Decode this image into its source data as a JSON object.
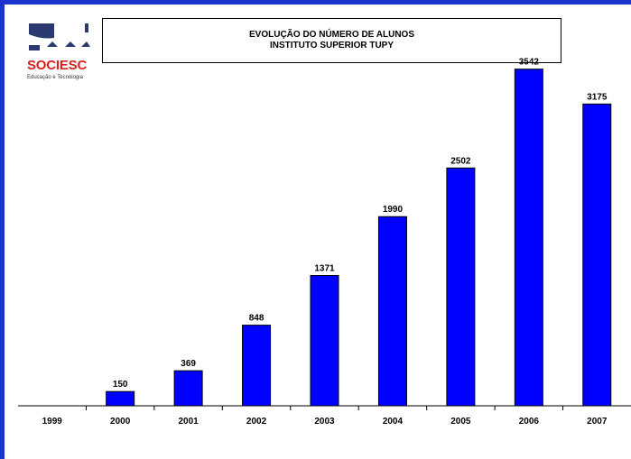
{
  "logo": {
    "brand": "SOCIESC",
    "tagline": "Educação e Tecnologia"
  },
  "header": {
    "title_line1": "EVOLUÇÃO DO NÚMERO DE ALUNOS",
    "title_line2": "INSTITUTO SUPERIOR TUPY"
  },
  "colors": {
    "bar": "#0000ff",
    "frame": "#1a33cc",
    "logo_red": "#d9201f",
    "logo_navy": "#2a3a6e"
  },
  "chart_data": {
    "type": "bar",
    "title": "EVOLUÇÃO DO NÚMERO DE ALUNOS",
    "subtitle": "INSTITUTO SUPERIOR TUPY",
    "categories": [
      "1999",
      "2000",
      "2001",
      "2002",
      "2003",
      "2004",
      "2005",
      "2006",
      "2007"
    ],
    "values": [
      null,
      150,
      369,
      848,
      1371,
      1990,
      2502,
      3542,
      3175
    ],
    "value_labels": [
      "",
      "150",
      "369",
      "848",
      "1371",
      "1990",
      "2502",
      "3542",
      "3175"
    ],
    "xlabel": "",
    "ylabel": "",
    "ylim": [
      0,
      3700
    ],
    "grid": false,
    "legend": "none"
  }
}
